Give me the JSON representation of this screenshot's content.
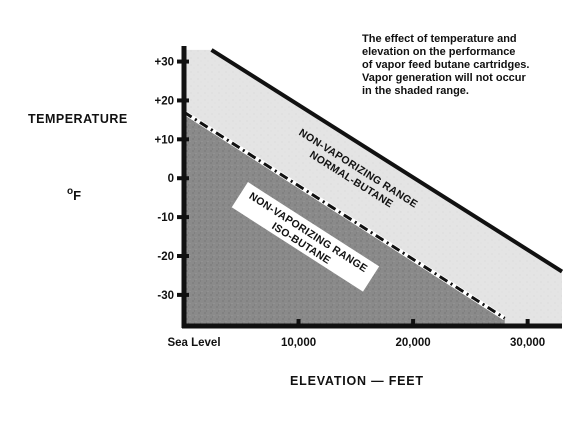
{
  "chart_data": {
    "type": "area",
    "title_lines": [
      "The effect of temperature and",
      "elevation on the performance",
      "of vapor feed butane cartridges.",
      "Vapor generation will not occur",
      "in the shaded range."
    ],
    "ylabel": "TEMPERATURE",
    "yunit": "F",
    "yunit_degree": "o",
    "xlabel": "ELEVATION — FEET",
    "xlim": [
      0,
      33000
    ],
    "ylim": [
      -38,
      34
    ],
    "yticks": [
      30,
      20,
      10,
      0,
      -10,
      -20,
      -30
    ],
    "ytick_labels": [
      "+30",
      "+20",
      "+10",
      "0",
      "-10",
      "-20",
      "-30"
    ],
    "xticks": [
      0,
      10000,
      20000,
      30000
    ],
    "xtick_labels": [
      "Sea Level",
      "10,000",
      "20,000",
      "30,000"
    ],
    "grid": false,
    "series": [
      {
        "name": "NON-VAPORIZING RANGE NORMAL-BUTANE",
        "label_lines": [
          "NON-VAPORIZING RANGE",
          "NORMAL-BUTANE"
        ],
        "boundary": [
          [
            2400,
            33
          ],
          [
            33000,
            -24
          ]
        ],
        "fill": "#e4e4e4",
        "line_style": "solid"
      },
      {
        "name": "NON-VAPORIZING RANGE ISO-BUTANE",
        "label_lines": [
          "NON-VAPORIZING RANGE",
          "ISO-BUTANE"
        ],
        "boundary": [
          [
            0,
            17
          ],
          [
            28000,
            -36
          ]
        ],
        "fill": "#8a8a8a",
        "line_style": "dash-dot"
      }
    ]
  }
}
